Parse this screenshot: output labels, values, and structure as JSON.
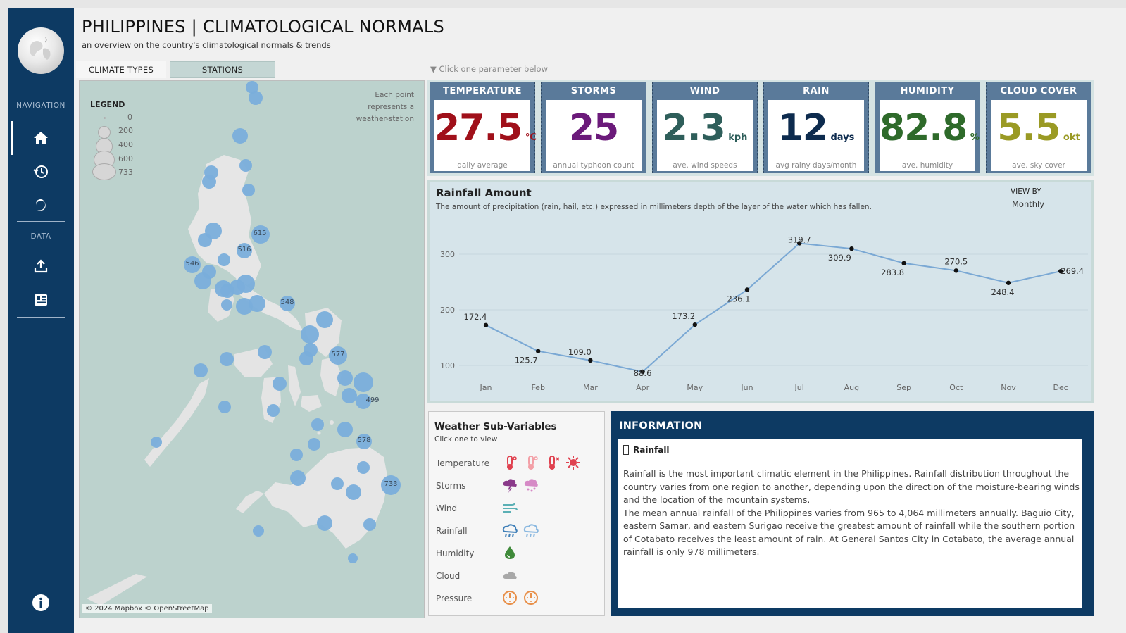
{
  "sidebar": {
    "nav_label": "NAVIGATION",
    "data_label": "DATA",
    "items": [
      {
        "icon": "home-icon"
      },
      {
        "icon": "history-icon"
      },
      {
        "icon": "typhoon-icon"
      },
      {
        "icon": "upload-icon"
      },
      {
        "icon": "news-icon"
      },
      {
        "icon": "info-icon"
      }
    ]
  },
  "header": {
    "title": "PHILIPPINES | CLIMATOLOGICAL NORMALS",
    "subtitle": "an overview on the country's climatological normals & trends"
  },
  "tabs": [
    {
      "label": "CLIMATE TYPES"
    },
    {
      "label": "STATIONS"
    }
  ],
  "map": {
    "legend_title": "LEGEND",
    "legend_values": [
      "0",
      "200",
      "400",
      "600",
      "733"
    ],
    "note": [
      "Each point",
      "represents a",
      "weather-station"
    ],
    "attribution": "© 2024 Mapbox © OpenStreetMap",
    "station_labels": [
      "615",
      "516",
      "546",
      "548",
      "577",
      "499",
      "578",
      "733"
    ]
  },
  "param_hint": "▼ Click one parameter below",
  "kpis": [
    {
      "title": "TEMPERATURE",
      "value": "27.5",
      "unit": "°C",
      "caption": "daily average",
      "color": "#a0101a"
    },
    {
      "title": "STORMS",
      "value": "25",
      "unit": "",
      "caption": "annual typhoon count",
      "color": "#6b1a7a"
    },
    {
      "title": "WIND",
      "value": "2.3",
      "unit": "kph",
      "caption": "ave. wind speeds",
      "color": "#2e5e5a"
    },
    {
      "title": "RAIN",
      "value": "12",
      "unit": "days",
      "caption": "avg rainy days/month",
      "color": "#0d2b4e"
    },
    {
      "title": "HUMIDITY",
      "value": "82.8",
      "unit": "%",
      "caption": "ave. humidity",
      "color": "#2e6a2a"
    },
    {
      "title": "CLOUD COVER",
      "value": "5.5",
      "unit": "okt",
      "caption": "ave. sky cover",
      "color": "#9a9a24"
    }
  ],
  "rainfall": {
    "title": "Rainfall Amount",
    "description": "The amount of precipitation (rain, hail, etc.) expressed in millimeters depth of the layer of the water which has fallen.",
    "view_by_label": "VIEW BY",
    "view_by_value": "Monthly"
  },
  "chart_data": {
    "type": "line",
    "categories": [
      "Jan",
      "Feb",
      "Mar",
      "Apr",
      "May",
      "Jun",
      "Jul",
      "Aug",
      "Sep",
      "Oct",
      "Nov",
      "Dec"
    ],
    "values": [
      172.4,
      125.7,
      109.0,
      88.6,
      173.2,
      236.1,
      319.7,
      309.9,
      283.8,
      270.5,
      248.4,
      269.4
    ],
    "labels": [
      "172.4",
      "125.7",
      "109.0",
      "88.6",
      "173.2",
      "236.1",
      "319.7",
      "309.9",
      "283.8",
      "270.5",
      "248.4",
      "269.4"
    ],
    "yticks": [
      100,
      200,
      300
    ],
    "ylim": [
      80,
      340
    ],
    "line_color": "#7aa8d4",
    "grid": true
  },
  "sub_variables": {
    "title": "Weather Sub-Variables",
    "hint": "Click one to view",
    "rows": [
      {
        "label": "Temperature",
        "icons": [
          "thermometer-hot-icon",
          "thermometer-cold-icon",
          "thermometer-snow-icon",
          "sun-snow-icon"
        ],
        "colors": [
          "#e0414f",
          "#f3a0a7",
          "#e0414f",
          "#e0414f"
        ]
      },
      {
        "label": "Storms",
        "icons": [
          "thunderstorm-icon",
          "hail-icon"
        ],
        "colors": [
          "#8a3a8a",
          "#d68ac6"
        ]
      },
      {
        "label": "Wind",
        "icons": [
          "wind-icon"
        ],
        "colors": [
          "#5bb0b5"
        ]
      },
      {
        "label": "Rainfall",
        "icons": [
          "rain-cloud-icon",
          "drizzle-cloud-icon"
        ],
        "colors": [
          "#3f7fb8",
          "#8ab8e0"
        ]
      },
      {
        "label": "Humidity",
        "icons": [
          "humidity-icon"
        ],
        "colors": [
          "#3f8a3a"
        ]
      },
      {
        "label": "Cloud",
        "icons": [
          "cloud-icon"
        ],
        "colors": [
          "#a8a8a8"
        ]
      },
      {
        "label": "Pressure",
        "icons": [
          "gauge-icon",
          "gauge-alt-icon"
        ],
        "colors": [
          "#e8904a",
          "#e8904a"
        ]
      }
    ]
  },
  "info": {
    "header": "INFORMATION",
    "topic": "Rainfall",
    "paragraphs": [
      "Rainfall is the most important climatic element in the Philippines. Rainfall distribution throughout the country varies from one region to another, depending upon the direction of the moisture-bearing winds and the location of the mountain systems.",
      "The mean annual rainfall of the Philippines varies from 965 to 4,064 millimeters annually. Baguio City, eastern Samar, and eastern Surigao receive the greatest amount of rainfall while the southern portion of Cotabato receives the least amount of rain. At General Santos City in Cotabato, the average annual rainfall is only 978 millimeters."
    ]
  }
}
